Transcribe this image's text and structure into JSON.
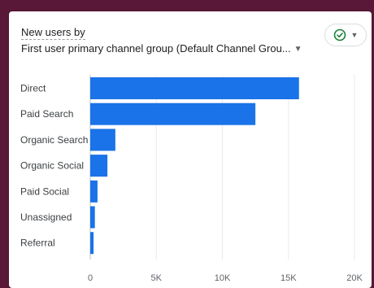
{
  "card": {
    "title_line1": "New users by",
    "title_line2": "First user primary channel group (Default Channel Grou...",
    "badge_icon": "check-circle-icon",
    "badge_color": "#188038"
  },
  "chart_data": {
    "type": "bar",
    "orientation": "horizontal",
    "categories": [
      "Direct",
      "Paid Search",
      "Organic Search",
      "Organic Social",
      "Paid Social",
      "Unassigned",
      "Referral"
    ],
    "values": [
      15800,
      12500,
      1900,
      1300,
      550,
      350,
      250
    ],
    "xlim": [
      0,
      20000
    ],
    "xticks": [
      "0",
      "5K",
      "10K",
      "15K",
      "20K"
    ],
    "grid": true,
    "bar_color": "#1a73e8"
  }
}
